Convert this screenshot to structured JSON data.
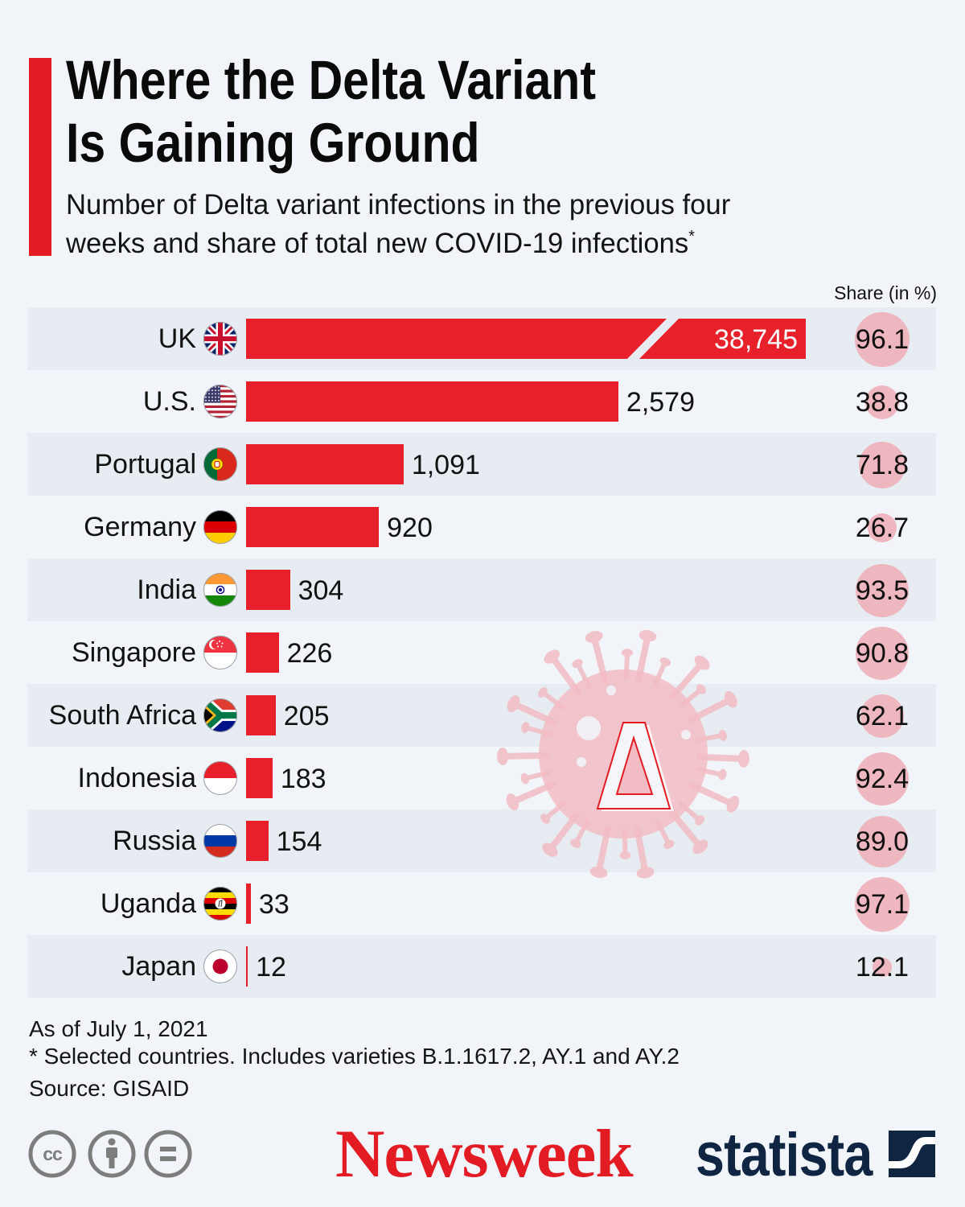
{
  "header": {
    "title_line1": "Where the Delta Variant",
    "title_line2": "Is Gaining Ground",
    "subtitle_line1": "Number of Delta variant infections in the previous four",
    "subtitle_line2": "weeks and share of total new COVID-19 infections",
    "subtitle_footnote_mark": "*"
  },
  "chart_data": {
    "type": "bar",
    "orientation": "horizontal",
    "title": "Where the Delta Variant Is Gaining Ground",
    "subtitle": "Number of Delta variant infections in the previous four weeks and share of total new COVID-19 infections*",
    "categories": [
      "UK",
      "U.S.",
      "Portugal",
      "Germany",
      "India",
      "Singapore",
      "South Africa",
      "Indonesia",
      "Russia",
      "Uganda",
      "Japan"
    ],
    "category_icons": [
      "uk-flag-icon",
      "us-flag-icon",
      "portugal-flag-icon",
      "germany-flag-icon",
      "india-flag-icon",
      "singapore-flag-icon",
      "south-africa-flag-icon",
      "indonesia-flag-icon",
      "russia-flag-icon",
      "uganda-flag-icon",
      "japan-flag-icon"
    ],
    "series": [
      {
        "name": "Delta variant infections (previous four weeks)",
        "values": [
          38745,
          2579,
          1091,
          920,
          304,
          226,
          205,
          183,
          154,
          33,
          12
        ],
        "labels": [
          "38,745",
          "2,579",
          "1,091",
          "920",
          "304",
          "226",
          "205",
          "183",
          "154",
          "33",
          "12"
        ],
        "color": "#e8202a"
      },
      {
        "name": "Share (in %)",
        "mark": "bubble",
        "values": [
          96.1,
          38.8,
          71.8,
          26.7,
          93.5,
          90.8,
          62.1,
          92.4,
          89.0,
          97.1,
          12.1
        ],
        "labels": [
          "96.1",
          "38.8",
          "71.8",
          "26.7",
          "93.5",
          "90.8",
          "62.1",
          "92.4",
          "89.0",
          "97.1",
          "12.1"
        ],
        "color": "#efb1ba"
      }
    ],
    "broken_bars": [
      "UK"
    ],
    "share_column_header": "Share (in %)",
    "xlabel": "",
    "ylabel": "",
    "legend": "none",
    "grid": false
  },
  "watermark": {
    "icon": "virus-delta-icon"
  },
  "footer": {
    "note_date": "As of July 1, 2021",
    "note_footnote": "* Selected countries. Includes varieties B.1.1617.2, AY.1 and AY.2",
    "source": "Source: GISAID"
  },
  "branding": {
    "license_icons": [
      "cc-icon",
      "attribution-icon",
      "no-derivatives-icon"
    ],
    "license_cc_text": "cc",
    "newsweek": "Newsweek",
    "statista": "statista"
  },
  "colors": {
    "accent": "#e31b23",
    "bar": "#e8202a",
    "bubble": "#efb1ba",
    "row_shade": "#e7ecf2",
    "background": "#f1f5f9",
    "statista_navy": "#0f2541",
    "license_gray": "#7d7d7d"
  }
}
